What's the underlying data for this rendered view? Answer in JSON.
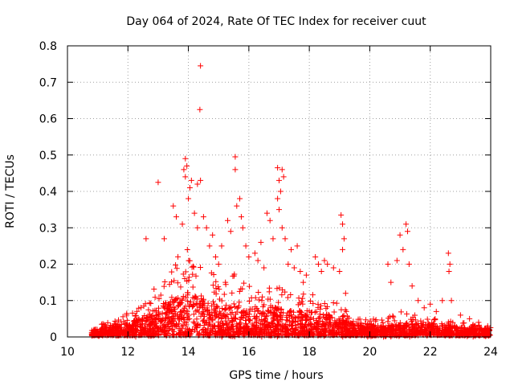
{
  "chart_data": {
    "type": "scatter",
    "title": "Day 064 of 2024, Rate Of TEC Index for receiver cuut",
    "xlabel": "GPS time / hours",
    "ylabel": "ROTI / TECUs",
    "xlim": [
      10,
      24
    ],
    "ylim": [
      0,
      0.8
    ],
    "xticks": [
      "10",
      "12",
      "14",
      "16",
      "18",
      "20",
      "22",
      "24"
    ],
    "yticks": [
      "0",
      "0.1",
      "0.2",
      "0.3",
      "0.4",
      "0.5",
      "0.6",
      "0.7",
      "0.8"
    ],
    "grid": true,
    "marker": "plus",
    "color": "#ff0000",
    "x_range_of_data": [
      10.8,
      24.0
    ],
    "points": [
      [
        14.4,
        0.745
      ],
      [
        14.38,
        0.625
      ],
      [
        13.9,
        0.49
      ],
      [
        13.95,
        0.47
      ],
      [
        13.85,
        0.46
      ],
      [
        13.9,
        0.44
      ],
      [
        14.05,
        0.41
      ],
      [
        14.1,
        0.43
      ],
      [
        14.3,
        0.42
      ],
      [
        14.4,
        0.43
      ],
      [
        13.0,
        0.425
      ],
      [
        12.6,
        0.27
      ],
      [
        13.2,
        0.27
      ],
      [
        13.5,
        0.36
      ],
      [
        13.6,
        0.33
      ],
      [
        13.8,
        0.31
      ],
      [
        14.0,
        0.38
      ],
      [
        14.2,
        0.34
      ],
      [
        14.3,
        0.3
      ],
      [
        14.5,
        0.33
      ],
      [
        14.6,
        0.3
      ],
      [
        14.7,
        0.25
      ],
      [
        14.8,
        0.28
      ],
      [
        14.9,
        0.22
      ],
      [
        15.0,
        0.2
      ],
      [
        15.1,
        0.25
      ],
      [
        15.3,
        0.32
      ],
      [
        15.4,
        0.29
      ],
      [
        15.55,
        0.495
      ],
      [
        15.55,
        0.46
      ],
      [
        15.6,
        0.36
      ],
      [
        15.7,
        0.38
      ],
      [
        15.75,
        0.33
      ],
      [
        15.8,
        0.3
      ],
      [
        15.9,
        0.25
      ],
      [
        16.0,
        0.22
      ],
      [
        16.2,
        0.23
      ],
      [
        16.3,
        0.21
      ],
      [
        16.4,
        0.26
      ],
      [
        16.5,
        0.19
      ],
      [
        16.6,
        0.34
      ],
      [
        16.7,
        0.32
      ],
      [
        16.8,
        0.27
      ],
      [
        16.95,
        0.465
      ],
      [
        17.0,
        0.43
      ],
      [
        17.05,
        0.4
      ],
      [
        17.1,
        0.46
      ],
      [
        17.15,
        0.44
      ],
      [
        16.95,
        0.38
      ],
      [
        17.0,
        0.35
      ],
      [
        17.1,
        0.3
      ],
      [
        17.2,
        0.27
      ],
      [
        17.3,
        0.2
      ],
      [
        17.4,
        0.24
      ],
      [
        17.5,
        0.19
      ],
      [
        17.6,
        0.25
      ],
      [
        17.7,
        0.18
      ],
      [
        17.8,
        0.15
      ],
      [
        17.9,
        0.17
      ],
      [
        18.2,
        0.22
      ],
      [
        18.3,
        0.2
      ],
      [
        18.4,
        0.18
      ],
      [
        18.5,
        0.21
      ],
      [
        18.6,
        0.2
      ],
      [
        18.8,
        0.19
      ],
      [
        19.0,
        0.18
      ],
      [
        19.05,
        0.335
      ],
      [
        19.1,
        0.31
      ],
      [
        19.15,
        0.27
      ],
      [
        19.1,
        0.24
      ],
      [
        19.2,
        0.12
      ],
      [
        20.6,
        0.2
      ],
      [
        20.7,
        0.15
      ],
      [
        20.9,
        0.21
      ],
      [
        21.0,
        0.28
      ],
      [
        21.1,
        0.24
      ],
      [
        21.2,
        0.31
      ],
      [
        21.25,
        0.29
      ],
      [
        21.3,
        0.2
      ],
      [
        21.4,
        0.14
      ],
      [
        21.6,
        0.1
      ],
      [
        21.8,
        0.08
      ],
      [
        22.0,
        0.09
      ],
      [
        22.2,
        0.07
      ],
      [
        22.4,
        0.1
      ],
      [
        22.6,
        0.23
      ],
      [
        22.65,
        0.2
      ],
      [
        22.62,
        0.18
      ],
      [
        22.7,
        0.1
      ],
      [
        23.0,
        0.06
      ],
      [
        23.3,
        0.05
      ],
      [
        23.6,
        0.04
      ],
      [
        23.9,
        0.03
      ]
    ],
    "density_envelope": [
      [
        10.8,
        0.015,
        0.02
      ],
      [
        11.0,
        0.02,
        0.03
      ],
      [
        11.5,
        0.025,
        0.05
      ],
      [
        12.0,
        0.035,
        0.07
      ],
      [
        12.5,
        0.05,
        0.09
      ],
      [
        13.0,
        0.08,
        0.15
      ],
      [
        13.5,
        0.1,
        0.22
      ],
      [
        14.0,
        0.12,
        0.25
      ],
      [
        14.5,
        0.1,
        0.2
      ],
      [
        15.0,
        0.08,
        0.16
      ],
      [
        15.5,
        0.09,
        0.18
      ],
      [
        16.0,
        0.07,
        0.14
      ],
      [
        16.5,
        0.07,
        0.13
      ],
      [
        17.0,
        0.08,
        0.15
      ],
      [
        17.5,
        0.07,
        0.12
      ],
      [
        18.0,
        0.07,
        0.12
      ],
      [
        18.5,
        0.06,
        0.11
      ],
      [
        19.0,
        0.05,
        0.09
      ],
      [
        19.5,
        0.03,
        0.05
      ],
      [
        20.0,
        0.03,
        0.05
      ],
      [
        20.5,
        0.025,
        0.05
      ],
      [
        21.0,
        0.035,
        0.07
      ],
      [
        21.5,
        0.035,
        0.06
      ],
      [
        22.0,
        0.03,
        0.05
      ],
      [
        22.5,
        0.03,
        0.05
      ],
      [
        23.0,
        0.025,
        0.04
      ],
      [
        23.5,
        0.02,
        0.035
      ],
      [
        24.0,
        0.02,
        0.03
      ]
    ]
  }
}
